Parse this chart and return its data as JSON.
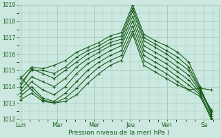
{
  "xlabel": "Pression niveau de la mer( hPa )",
  "ylim": [
    1012,
    1019
  ],
  "yticks": [
    1012,
    1013,
    1014,
    1015,
    1016,
    1017,
    1018,
    1019
  ],
  "bg_color": "#cce8e0",
  "grid_color": "#99ccbb",
  "line_color": "#1a5c1a",
  "xtick_labels": [
    "Lun",
    "Mar",
    "Mer",
    "Jeu",
    "Ven",
    "Sa"
  ],
  "xtick_positions": [
    0,
    1,
    2,
    3,
    4,
    5
  ],
  "xlim": [
    -0.05,
    5.4
  ],
  "series": [
    [
      1014.5,
      1015.2,
      1015.1,
      1015.3,
      1015.6,
      1016.1,
      1016.4,
      1016.7,
      1017.1,
      1017.3,
      1019.0,
      1017.2,
      1016.8,
      1016.5,
      1016.1,
      1015.5,
      1014.0,
      1012.3
    ],
    [
      1014.2,
      1015.0,
      1015.0,
      1014.8,
      1015.2,
      1015.8,
      1016.2,
      1016.5,
      1016.9,
      1017.1,
      1018.8,
      1017.0,
      1016.6,
      1016.2,
      1015.8,
      1015.2,
      1013.9,
      1012.5
    ],
    [
      1014.0,
      1015.1,
      1014.8,
      1014.5,
      1015.0,
      1015.5,
      1016.0,
      1016.3,
      1016.7,
      1016.9,
      1018.6,
      1016.8,
      1016.4,
      1016.0,
      1015.5,
      1015.0,
      1013.8,
      1012.4
    ],
    [
      1013.8,
      1014.6,
      1014.3,
      1014.0,
      1014.5,
      1015.2,
      1015.7,
      1016.1,
      1016.5,
      1016.7,
      1018.3,
      1016.5,
      1016.1,
      1015.7,
      1015.2,
      1014.7,
      1013.7,
      1012.6
    ],
    [
      1013.6,
      1014.3,
      1013.8,
      1013.5,
      1014.0,
      1014.8,
      1015.4,
      1015.8,
      1016.2,
      1016.5,
      1018.0,
      1016.2,
      1015.8,
      1015.4,
      1014.9,
      1014.4,
      1013.6,
      1012.2
    ],
    [
      1013.4,
      1014.0,
      1013.3,
      1013.1,
      1013.6,
      1014.3,
      1015.0,
      1015.5,
      1015.9,
      1016.2,
      1017.7,
      1015.9,
      1015.5,
      1015.1,
      1014.6,
      1014.1,
      1013.5,
      1012.0
    ],
    [
      1013.2,
      1013.6,
      1013.1,
      1013.0,
      1013.3,
      1013.9,
      1014.6,
      1015.2,
      1015.6,
      1015.9,
      1017.4,
      1015.6,
      1015.2,
      1014.8,
      1014.3,
      1013.8,
      1013.4,
      1012.1
    ],
    [
      1014.6,
      1013.8,
      1013.2,
      1013.0,
      1013.1,
      1013.5,
      1014.2,
      1014.8,
      1015.3,
      1015.6,
      1017.2,
      1015.3,
      1014.9,
      1014.5,
      1014.1,
      1013.8,
      1013.9,
      1013.8
    ]
  ],
  "n_days_x": 5.4
}
